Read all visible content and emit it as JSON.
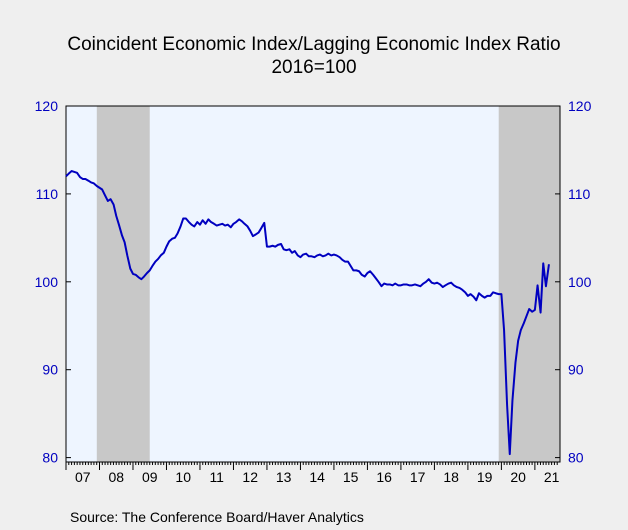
{
  "chart_data": {
    "type": "line",
    "title": "Coincident Economic Index/Lagging Economic Index Ratio",
    "subtitle": "2016=100",
    "source": "Source:  The Conference Board/Haver Analytics",
    "x_range": [
      2007.0,
      2021.75
    ],
    "ylim": [
      79.5,
      120
    ],
    "y_ticks": [
      80,
      90,
      100,
      110,
      120
    ],
    "x_tick_labels": [
      {
        "label": "07",
        "year": 2007
      },
      {
        "label": "08",
        "year": 2008
      },
      {
        "label": "09",
        "year": 2009
      },
      {
        "label": "10",
        "year": 2010
      },
      {
        "label": "11",
        "year": 2011
      },
      {
        "label": "12",
        "year": 2012
      },
      {
        "label": "13",
        "year": 2013
      },
      {
        "label": "14",
        "year": 2014
      },
      {
        "label": "15",
        "year": 2015
      },
      {
        "label": "16",
        "year": 2016
      },
      {
        "label": "17",
        "year": 2017
      },
      {
        "label": "18",
        "year": 2018
      },
      {
        "label": "19",
        "year": 2019
      },
      {
        "label": "20",
        "year": 2020
      },
      {
        "label": "21",
        "year": 2021
      }
    ],
    "recessions": [
      [
        2007.92,
        2009.5
      ],
      [
        2019.92,
        2021.75
      ]
    ],
    "colors": {
      "line": "#0000c0",
      "recession": "#c8c8c8",
      "plot_bg": "#eef5ff",
      "axis_text": "#0000c0"
    },
    "series": [
      {
        "values": [
          [
            2007.0,
            112.0
          ],
          [
            2007.08,
            112.3
          ],
          [
            2007.17,
            112.6
          ],
          [
            2007.25,
            112.5
          ],
          [
            2007.33,
            112.4
          ],
          [
            2007.42,
            111.9
          ],
          [
            2007.5,
            111.7
          ],
          [
            2007.58,
            111.7
          ],
          [
            2007.67,
            111.5
          ],
          [
            2007.75,
            111.3
          ],
          [
            2007.83,
            111.2
          ],
          [
            2007.92,
            110.9
          ],
          [
            2008.0,
            110.7
          ],
          [
            2008.08,
            110.5
          ],
          [
            2008.17,
            109.8
          ],
          [
            2008.25,
            109.2
          ],
          [
            2008.33,
            109.4
          ],
          [
            2008.42,
            108.8
          ],
          [
            2008.5,
            107.5
          ],
          [
            2008.58,
            106.5
          ],
          [
            2008.67,
            105.3
          ],
          [
            2008.75,
            104.5
          ],
          [
            2008.83,
            103.0
          ],
          [
            2008.92,
            101.5
          ],
          [
            2009.0,
            100.9
          ],
          [
            2009.08,
            100.8
          ],
          [
            2009.17,
            100.5
          ],
          [
            2009.25,
            100.3
          ],
          [
            2009.33,
            100.6
          ],
          [
            2009.42,
            101.0
          ],
          [
            2009.5,
            101.3
          ],
          [
            2009.58,
            101.8
          ],
          [
            2009.67,
            102.3
          ],
          [
            2009.75,
            102.6
          ],
          [
            2009.83,
            103.0
          ],
          [
            2009.92,
            103.3
          ],
          [
            2010.0,
            104.0
          ],
          [
            2010.08,
            104.6
          ],
          [
            2010.17,
            104.9
          ],
          [
            2010.25,
            105.0
          ],
          [
            2010.33,
            105.5
          ],
          [
            2010.42,
            106.3
          ],
          [
            2010.5,
            107.2
          ],
          [
            2010.58,
            107.2
          ],
          [
            2010.67,
            106.8
          ],
          [
            2010.75,
            106.5
          ],
          [
            2010.83,
            106.3
          ],
          [
            2010.92,
            106.8
          ],
          [
            2011.0,
            106.5
          ],
          [
            2011.08,
            107.0
          ],
          [
            2011.17,
            106.6
          ],
          [
            2011.25,
            107.1
          ],
          [
            2011.33,
            106.8
          ],
          [
            2011.42,
            106.6
          ],
          [
            2011.5,
            106.4
          ],
          [
            2011.58,
            106.5
          ],
          [
            2011.67,
            106.6
          ],
          [
            2011.75,
            106.4
          ],
          [
            2011.83,
            106.5
          ],
          [
            2011.92,
            106.2
          ],
          [
            2012.0,
            106.6
          ],
          [
            2012.08,
            106.8
          ],
          [
            2012.17,
            107.1
          ],
          [
            2012.25,
            106.9
          ],
          [
            2012.33,
            106.6
          ],
          [
            2012.42,
            106.3
          ],
          [
            2012.5,
            105.8
          ],
          [
            2012.58,
            105.2
          ],
          [
            2012.67,
            105.4
          ],
          [
            2012.75,
            105.6
          ],
          [
            2012.83,
            106.1
          ],
          [
            2012.92,
            106.7
          ],
          [
            2013.0,
            104.0
          ],
          [
            2013.08,
            104.0
          ],
          [
            2013.17,
            104.1
          ],
          [
            2013.25,
            104.0
          ],
          [
            2013.33,
            104.2
          ],
          [
            2013.42,
            104.3
          ],
          [
            2013.5,
            103.7
          ],
          [
            2013.58,
            103.6
          ],
          [
            2013.67,
            103.7
          ],
          [
            2013.75,
            103.3
          ],
          [
            2013.83,
            103.5
          ],
          [
            2013.92,
            103.0
          ],
          [
            2014.0,
            102.8
          ],
          [
            2014.08,
            103.1
          ],
          [
            2014.17,
            103.2
          ],
          [
            2014.25,
            102.9
          ],
          [
            2014.33,
            102.9
          ],
          [
            2014.42,
            102.8
          ],
          [
            2014.5,
            103.0
          ],
          [
            2014.58,
            103.1
          ],
          [
            2014.67,
            102.9
          ],
          [
            2014.75,
            103.0
          ],
          [
            2014.83,
            103.2
          ],
          [
            2014.92,
            103.0
          ],
          [
            2015.0,
            103.1
          ],
          [
            2015.08,
            103.0
          ],
          [
            2015.17,
            102.8
          ],
          [
            2015.25,
            102.5
          ],
          [
            2015.33,
            102.3
          ],
          [
            2015.42,
            102.3
          ],
          [
            2015.5,
            101.8
          ],
          [
            2015.58,
            101.3
          ],
          [
            2015.67,
            101.3
          ],
          [
            2015.75,
            101.2
          ],
          [
            2015.83,
            100.8
          ],
          [
            2015.92,
            100.6
          ],
          [
            2016.0,
            101.0
          ],
          [
            2016.08,
            101.2
          ],
          [
            2016.17,
            100.8
          ],
          [
            2016.25,
            100.4
          ],
          [
            2016.33,
            100.0
          ],
          [
            2016.42,
            99.5
          ],
          [
            2016.5,
            99.8
          ],
          [
            2016.58,
            99.7
          ],
          [
            2016.67,
            99.7
          ],
          [
            2016.75,
            99.6
          ],
          [
            2016.83,
            99.8
          ],
          [
            2016.92,
            99.6
          ],
          [
            2017.0,
            99.6
          ],
          [
            2017.08,
            99.7
          ],
          [
            2017.17,
            99.7
          ],
          [
            2017.25,
            99.6
          ],
          [
            2017.33,
            99.6
          ],
          [
            2017.42,
            99.7
          ],
          [
            2017.5,
            99.6
          ],
          [
            2017.58,
            99.5
          ],
          [
            2017.67,
            99.8
          ],
          [
            2017.75,
            100.0
          ],
          [
            2017.83,
            100.3
          ],
          [
            2017.92,
            99.9
          ],
          [
            2018.0,
            99.8
          ],
          [
            2018.08,
            99.9
          ],
          [
            2018.17,
            99.7
          ],
          [
            2018.25,
            99.4
          ],
          [
            2018.33,
            99.6
          ],
          [
            2018.42,
            99.8
          ],
          [
            2018.5,
            99.9
          ],
          [
            2018.58,
            99.6
          ],
          [
            2018.67,
            99.4
          ],
          [
            2018.75,
            99.3
          ],
          [
            2018.83,
            99.1
          ],
          [
            2018.92,
            98.8
          ],
          [
            2019.0,
            98.4
          ],
          [
            2019.08,
            98.6
          ],
          [
            2019.17,
            98.3
          ],
          [
            2019.25,
            97.9
          ],
          [
            2019.33,
            98.7
          ],
          [
            2019.42,
            98.4
          ],
          [
            2019.5,
            98.2
          ],
          [
            2019.58,
            98.4
          ],
          [
            2019.67,
            98.4
          ],
          [
            2019.75,
            98.8
          ],
          [
            2019.83,
            98.7
          ],
          [
            2019.92,
            98.6
          ],
          [
            2020.0,
            98.6
          ],
          [
            2020.08,
            94.5
          ],
          [
            2020.17,
            86.0
          ],
          [
            2020.25,
            80.4
          ],
          [
            2020.33,
            86.5
          ],
          [
            2020.42,
            90.8
          ],
          [
            2020.5,
            93.3
          ],
          [
            2020.58,
            94.5
          ],
          [
            2020.67,
            95.3
          ],
          [
            2020.75,
            96.1
          ],
          [
            2020.83,
            96.9
          ],
          [
            2020.92,
            96.6
          ],
          [
            2021.0,
            96.8
          ],
          [
            2021.08,
            99.6
          ],
          [
            2021.17,
            96.5
          ],
          [
            2021.25,
            102.1
          ],
          [
            2021.33,
            99.5
          ],
          [
            2021.42,
            102.0
          ]
        ]
      }
    ]
  }
}
